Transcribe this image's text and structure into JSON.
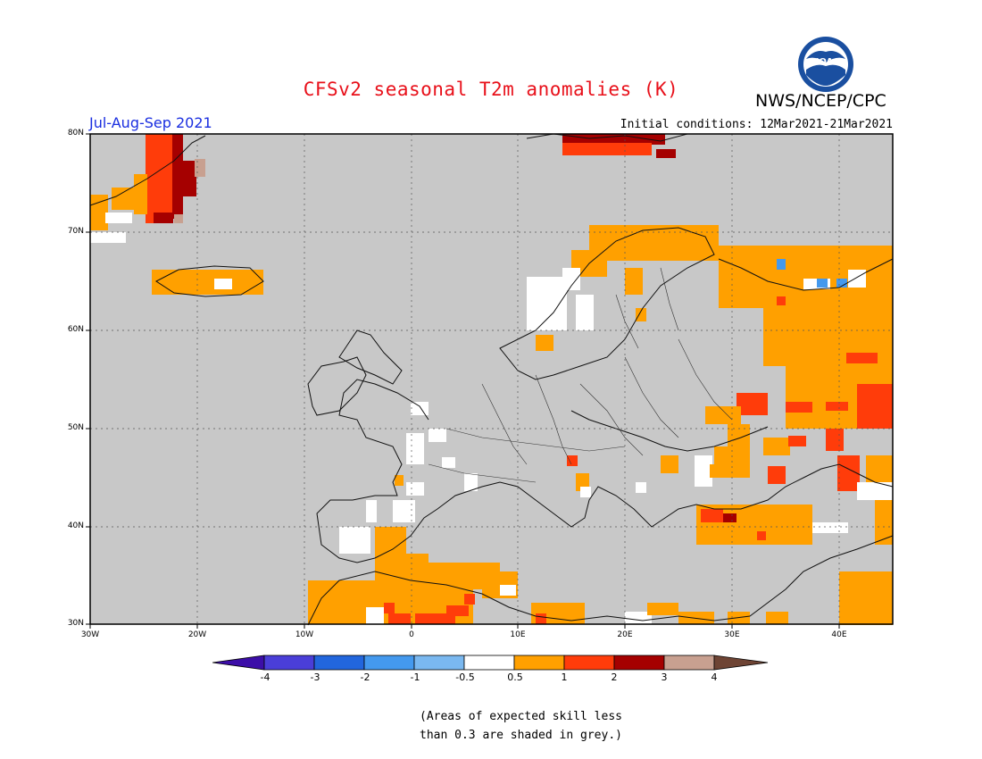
{
  "header": {
    "title": "CFSv2 seasonal T2m anomalies (K)",
    "agency": "NWS/NCEP/CPC",
    "logo_text": "NOAA",
    "period": "Jul-Aug-Sep 2021",
    "initial_conditions": "Initial conditions: 12Mar2021-21Mar2021"
  },
  "map": {
    "lon_ticks": [
      "30W",
      "20W",
      "10W",
      "0",
      "10E",
      "20E",
      "30E",
      "40E"
    ],
    "lat_ticks": [
      "30N",
      "40N",
      "50N",
      "60N",
      "70N",
      "80N"
    ],
    "domain_lon": [
      -30,
      45
    ],
    "domain_lat": [
      30,
      80
    ],
    "skill_mask_color": "#c8c8c8"
  },
  "colorbar": {
    "labels": [
      "-4",
      "-3",
      "-2",
      "-1",
      "-0.5",
      "0.5",
      "1",
      "2",
      "3",
      "4"
    ],
    "colors": [
      "#3c0ea8",
      "#4a3ed8",
      "#2266dd",
      "#4499ee",
      "#7ab8f0",
      "#ffffff",
      "#ffa000",
      "#ff3c0a",
      "#a50000",
      "#c8a090",
      "#6e4434"
    ]
  },
  "footnote": {
    "line1": "(Areas of expected skill less",
    "line2": "than 0.3 are shaded in grey.)"
  }
}
